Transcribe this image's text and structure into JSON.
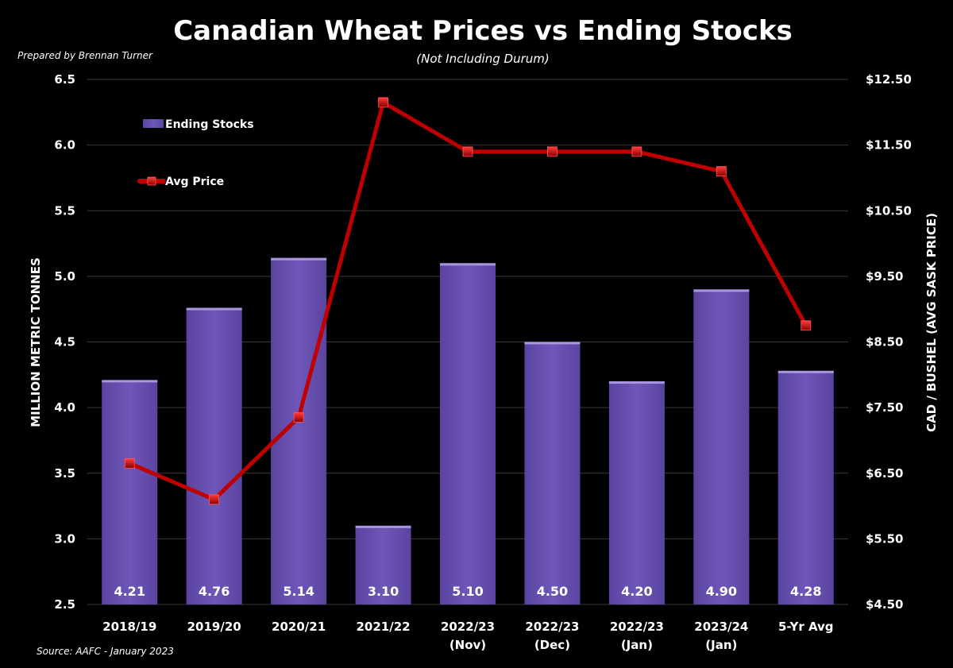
{
  "chart_data": {
    "type": "bar",
    "title": "Canadian Wheat Prices vs Ending Stocks",
    "subtitle": "(Not Including Durum)",
    "credit": "Prepared by Brennan Turner",
    "source": "Source: AAFC - January 2023",
    "categories": [
      [
        "2018/19"
      ],
      [
        "2019/20"
      ],
      [
        "2020/21"
      ],
      [
        "2021/22"
      ],
      [
        "2022/23",
        "(Nov)"
      ],
      [
        "2022/23",
        "(Dec)"
      ],
      [
        "2022/23",
        "(Jan)"
      ],
      [
        "2023/24",
        "(Jan)"
      ],
      [
        "5-Yr Avg"
      ]
    ],
    "ylabel": "MILLION METRIC TONNES",
    "y2label": "CAD / BUSHEL (AVG SASK PRICE)",
    "ylim": [
      2.5,
      6.5
    ],
    "yticks": [
      "2.5",
      "3.0",
      "3.5",
      "4.0",
      "4.5",
      "5.0",
      "5.5",
      "6.0",
      "6.5"
    ],
    "y2lim": [
      4.5,
      12.5
    ],
    "y2ticks": [
      "$4.50",
      "$5.50",
      "$6.50",
      "$7.50",
      "$8.50",
      "$9.50",
      "$10.50",
      "$11.50",
      "$12.50"
    ],
    "grid": true,
    "legend_position": "top-left",
    "series": [
      {
        "name": "Ending Stocks",
        "type": "bar",
        "axis": "left",
        "color": "#6a50b0",
        "values": [
          4.21,
          4.76,
          5.14,
          3.1,
          5.1,
          4.5,
          4.2,
          4.9,
          4.28
        ],
        "labels": [
          "4.21",
          "4.76",
          "5.14",
          "3.10",
          "5.10",
          "4.50",
          "4.20",
          "4.90",
          "4.28"
        ]
      },
      {
        "name": "Avg Price",
        "type": "line",
        "axis": "right",
        "color": "#c00000",
        "values": [
          6.65,
          6.1,
          7.35,
          12.15,
          11.4,
          11.4,
          11.4,
          11.1,
          8.75
        ]
      }
    ]
  }
}
